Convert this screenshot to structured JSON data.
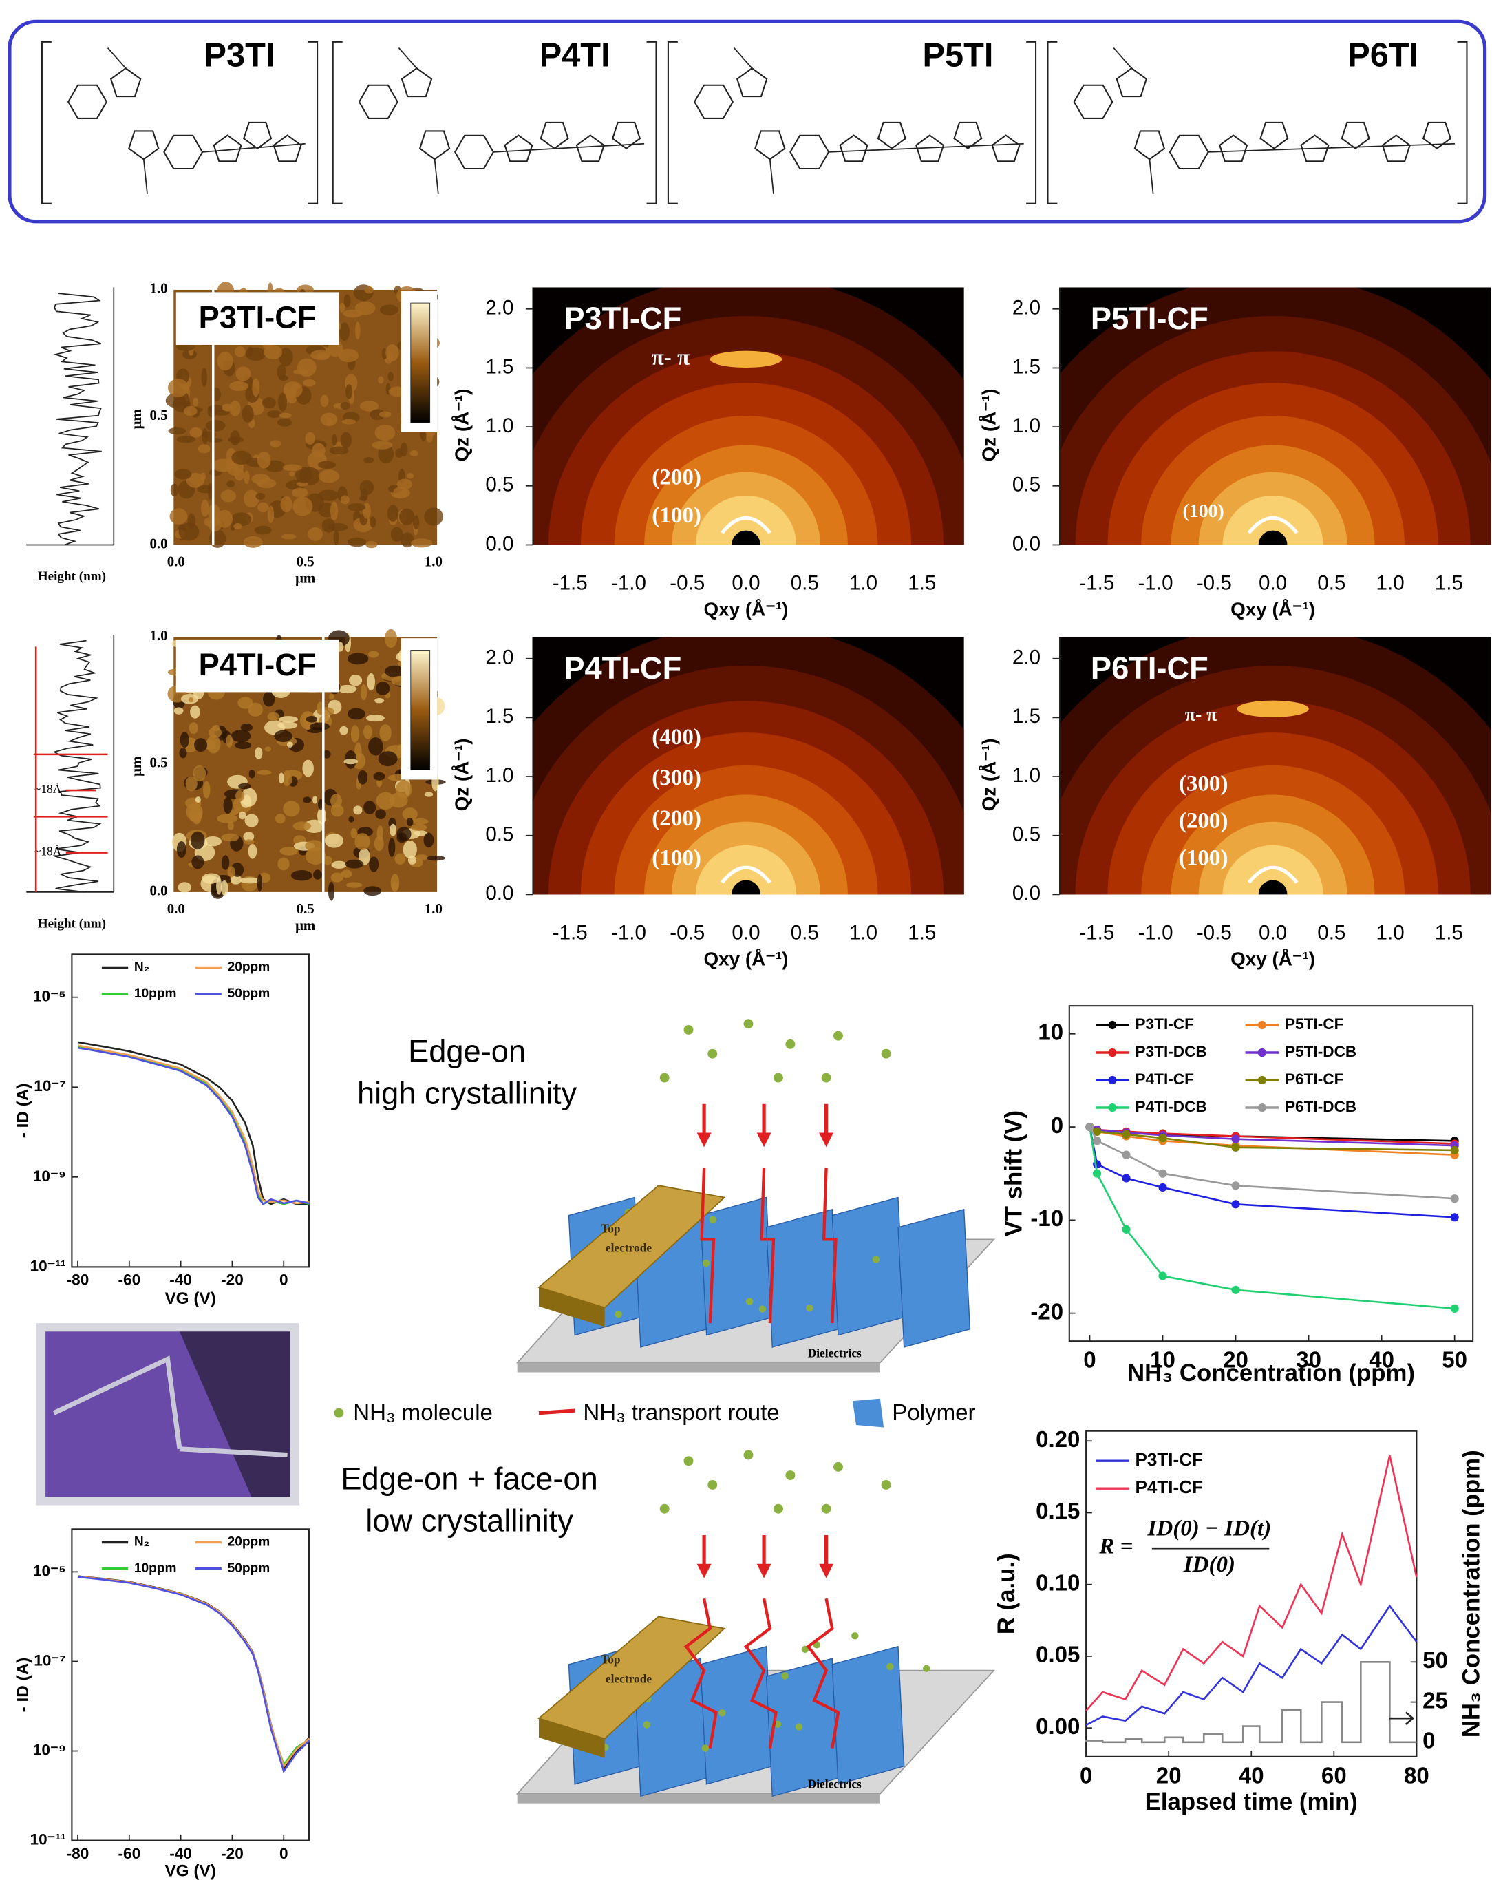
{
  "structures": {
    "labels": [
      "P3TI",
      "P4TI",
      "P5TI",
      "P6TI"
    ]
  },
  "afm": [
    {
      "label": "P3TI-CF",
      "x_ticks": [
        "0.0",
        "0.5",
        "1.0"
      ],
      "y_ticks": [
        "0.0",
        "0.5",
        "1.0"
      ],
      "axis_unit": "μm",
      "profile_label": "Height (nm)"
    },
    {
      "label": "P4TI-CF",
      "x_ticks": [
        "0.0",
        "0.5",
        "1.0"
      ],
      "y_ticks": [
        "0.0",
        "0.5",
        "1.0"
      ],
      "axis_unit": "μm",
      "profile_label": "Height (nm)",
      "annotations": [
        "~18Å",
        "~18Å"
      ]
    }
  ],
  "giwaxs": {
    "qz_ticks": [
      "0.0",
      "0.5",
      "1.0",
      "1.5",
      "2.0"
    ],
    "qxy_ticks": [
      "-1.5",
      "-1.0",
      "-0.5",
      "0.0",
      "0.5",
      "1.0",
      "1.5"
    ],
    "qz_label": "Qz (Å⁻¹)",
    "qxy_label": "Qxy (Å⁻¹)",
    "panels": [
      {
        "label": "P3TI-CF",
        "peaks": [
          "π- π",
          "(200)",
          "(100)"
        ]
      },
      {
        "label": "P5TI-CF",
        "peaks": [
          "(100)"
        ]
      },
      {
        "label": "P4TI-CF",
        "peaks": [
          "(400)",
          "(300)",
          "(200)",
          "(100)"
        ]
      },
      {
        "label": "P6TI-CF",
        "peaks": [
          "π- π",
          "(300)",
          "(200)",
          "(100)"
        ]
      }
    ]
  },
  "schematic": {
    "top_title": [
      "Edge-on",
      "high crystallinity"
    ],
    "bottom_title": [
      "Edge-on + face-on",
      "low crystallinity"
    ],
    "electrode_label": [
      "Top",
      "electrode"
    ],
    "substrate_label": "Dielectrics",
    "legend": [
      "NH₃ molecule",
      "NH₃ transport route",
      "Polymer"
    ]
  },
  "chart_data": [
    {
      "type": "line",
      "log_y": true,
      "x_label": "VG (V)",
      "y_label": "- ID (A)",
      "xlim": [
        -82.3,
        9.8
      ],
      "ylim": [
        1e-11,
        9e-05
      ],
      "xticks": [
        -80,
        -60,
        -40,
        -20,
        0
      ],
      "yticks": [
        {
          "value": 1e-11,
          "label": "10⁻¹¹"
        },
        {
          "value": 1e-09,
          "label": "10⁻⁹"
        },
        {
          "value": 1e-07,
          "label": "10⁻⁷"
        },
        {
          "value": 1e-05,
          "label": "10⁻⁵"
        }
      ],
      "x": [
        -80,
        -70,
        -60,
        -50,
        -40,
        -30,
        -25,
        -20,
        -15,
        -12,
        -10,
        -8,
        -5,
        0,
        5,
        10
      ],
      "series": [
        {
          "name": "N₂",
          "color": "#222222",
          "values": [
            1e-06,
            8e-07,
            6.3e-07,
            4.5e-07,
            3.2e-07,
            1.6e-07,
            1e-07,
            5e-08,
            1.6e-08,
            5e-09,
            1e-09,
            3.2e-10,
            2.5e-10,
            3.2e-10,
            2.5e-10,
            2.5e-10
          ]
        },
        {
          "name": "10ppm",
          "color": "#33cc33",
          "values": [
            8e-07,
            6.3e-07,
            5e-07,
            3.5e-07,
            2.5e-07,
            1.2e-07,
            6e-08,
            2.5e-08,
            6e-09,
            1.5e-09,
            4e-10,
            2.5e-10,
            3e-10,
            2.5e-10,
            3e-10,
            2.5e-10
          ]
        },
        {
          "name": "20ppm",
          "color": "#f0a050",
          "values": [
            8.5e-07,
            6.6e-07,
            5.2e-07,
            3.7e-07,
            2.6e-07,
            1.3e-07,
            6.5e-08,
            2.8e-08,
            7e-09,
            1.8e-09,
            5e-10,
            3e-10,
            2.8e-10,
            3e-10,
            2.6e-10,
            2.8e-10
          ]
        },
        {
          "name": "50ppm",
          "color": "#5050e0",
          "values": [
            7.5e-07,
            6e-07,
            4.7e-07,
            3.3e-07,
            2.3e-07,
            1.1e-07,
            5.5e-08,
            2.2e-08,
            5e-09,
            1.2e-09,
            3.5e-10,
            2.5e-10,
            3.2e-10,
            2.6e-10,
            3e-10,
            2.6e-10
          ]
        }
      ]
    },
    {
      "type": "line",
      "log_y": true,
      "x_label": "VG (V)",
      "y_label": "- ID (A)",
      "xlim": [
        -82.3,
        9.8
      ],
      "ylim": [
        1e-11,
        9e-05
      ],
      "xticks": [
        -80,
        -60,
        -40,
        -20,
        0
      ],
      "yticks": [
        {
          "value": 1e-11,
          "label": "10⁻¹¹"
        },
        {
          "value": 1e-09,
          "label": "10⁻⁹"
        },
        {
          "value": 1e-07,
          "label": "10⁻⁷"
        },
        {
          "value": 1e-05,
          "label": "10⁻⁵"
        }
      ],
      "x": [
        -80,
        -70,
        -60,
        -50,
        -40,
        -30,
        -25,
        -20,
        -15,
        -12,
        -10,
        -8,
        -5,
        0,
        5,
        10
      ],
      "series": [
        {
          "name": "N₂",
          "color": "#222222",
          "values": [
            8e-06,
            7e-06,
            6e-06,
            4.5e-06,
            3.3e-06,
            2e-06,
            1.3e-06,
            7e-07,
            3e-07,
            1.6e-07,
            7e-08,
            2.5e-08,
            4e-09,
            4e-10,
            1e-09,
            2e-09
          ]
        },
        {
          "name": "10ppm",
          "color": "#33cc33",
          "values": [
            7.8e-06,
            6.8e-06,
            5.8e-06,
            4.4e-06,
            3.2e-06,
            1.9e-06,
            1.25e-06,
            6.6e-07,
            2.8e-07,
            1.5e-07,
            6.5e-08,
            2.2e-08,
            3.5e-09,
            5e-10,
            1.2e-09,
            1.8e-09
          ]
        },
        {
          "name": "20ppm",
          "color": "#f0a050",
          "values": [
            7.9e-06,
            6.9e-06,
            5.9e-06,
            4.4e-06,
            3.25e-06,
            1.95e-06,
            1.28e-06,
            6.8e-07,
            2.9e-07,
            1.55e-07,
            6.8e-08,
            2.4e-08,
            3.8e-09,
            4.5e-10,
            1.1e-09,
            1.9e-09
          ]
        },
        {
          "name": "50ppm",
          "color": "#5050e0",
          "values": [
            7.7e-06,
            6.7e-06,
            5.7e-06,
            4.3e-06,
            3.1e-06,
            1.85e-06,
            1.2e-06,
            6.4e-07,
            2.7e-07,
            1.45e-07,
            6.2e-08,
            2e-08,
            3.2e-09,
            3.5e-10,
            9e-10,
            1.7e-09
          ]
        }
      ]
    },
    {
      "type": "line",
      "markers": true,
      "x_label": "NH₃ Concentration (ppm)",
      "y_label": "VT shift (V)",
      "xlim": [
        -2.8,
        52.5
      ],
      "ylim": [
        -23,
        13
      ],
      "xticks": [
        0,
        10,
        20,
        30,
        40,
        50
      ],
      "yticks": [
        -20,
        -10,
        0,
        10
      ],
      "x": [
        0,
        1,
        5,
        10,
        20,
        50
      ],
      "series": [
        {
          "name": "P3TI-CF",
          "color": "#000000",
          "values": [
            0,
            -0.3,
            -0.6,
            -0.8,
            -1,
            -1.5
          ]
        },
        {
          "name": "P3TI-DCB",
          "color": "#e02020",
          "values": [
            0,
            -0.3,
            -0.5,
            -0.7,
            -1,
            -1.8
          ]
        },
        {
          "name": "P4TI-CF",
          "color": "#2020e0",
          "values": [
            0,
            -4,
            -5.5,
            -6.5,
            -8.3,
            -9.7
          ]
        },
        {
          "name": "P4TI-DCB",
          "color": "#20d070",
          "values": [
            0,
            -5,
            -11,
            -16,
            -17.5,
            -19.5
          ]
        },
        {
          "name": "P5TI-CF",
          "color": "#f08020",
          "values": [
            0,
            -0.5,
            -1,
            -1.5,
            -2,
            -3
          ]
        },
        {
          "name": "P5TI-DCB",
          "color": "#7030d0",
          "values": [
            0,
            -0.3,
            -0.6,
            -0.9,
            -1.3,
            -2
          ]
        },
        {
          "name": "P6TI-CF",
          "color": "#808000",
          "values": [
            0,
            -0.5,
            -0.8,
            -1.2,
            -2.2,
            -2.5
          ]
        },
        {
          "name": "P6TI-DCB",
          "color": "#999999",
          "values": [
            0,
            -1.5,
            -3,
            -5,
            -6.3,
            -7.7
          ]
        }
      ]
    },
    {
      "type": "line",
      "x_label": "Elapsed time (min)",
      "y_label": "R (a.u.)",
      "y2_label": "NH₃ Concentration (ppm)",
      "xlim": [
        0,
        80
      ],
      "ylim": [
        -0.02,
        0.207
      ],
      "y2lim": [
        -9,
        194
      ],
      "xticks": [
        0,
        20,
        40,
        60,
        80
      ],
      "yticks": [
        {
          "value": 0,
          "label": "0.00"
        },
        {
          "value": 0.05,
          "label": "0.05"
        },
        {
          "value": 0.1,
          "label": "0.10"
        },
        {
          "value": 0.15,
          "label": "0.15"
        },
        {
          "value": 0.2,
          "label": "0.20"
        }
      ],
      "y2ticks": [
        0,
        25,
        50
      ],
      "equation": {
        "lhs": "R =",
        "numerator": "ID(0) − ID(t)",
        "denominator": "ID(0)"
      },
      "x": [
        0,
        4,
        9.5,
        13.5,
        19,
        23.5,
        28.5,
        33,
        38,
        42,
        47.5,
        52,
        57,
        62,
        66.5,
        73.5,
        80
      ],
      "series": [
        {
          "name": "P3TI-CF",
          "color": "#3333dd",
          "values": [
            0.002,
            0.008,
            0.005,
            0.015,
            0.01,
            0.025,
            0.02,
            0.035,
            0.025,
            0.045,
            0.035,
            0.055,
            0.045,
            0.065,
            0.055,
            0.085,
            0.06
          ]
        },
        {
          "name": "P4TI-CF",
          "color": "#ee3355",
          "values": [
            0.012,
            0.025,
            0.02,
            0.04,
            0.03,
            0.055,
            0.045,
            0.06,
            0.05,
            0.085,
            0.07,
            0.1,
            0.08,
            0.135,
            0.1,
            0.19,
            0.105
          ]
        },
        {
          "color": "#888888",
          "axis": "y2",
          "x": [
            0,
            0,
            4,
            4,
            9.5,
            9.5,
            13.5,
            13.5,
            19,
            19,
            23.5,
            23.5,
            28.5,
            28.5,
            33,
            33,
            38,
            38,
            42,
            42,
            47.5,
            47.5,
            52,
            52,
            57,
            57,
            62,
            62,
            66.5,
            66.5,
            73.5,
            73.5,
            80
          ],
          "values": [
            0,
            1,
            1,
            0,
            0,
            2,
            2,
            0,
            0,
            3,
            3,
            0,
            0,
            5,
            5,
            0,
            0,
            10,
            10,
            0,
            0,
            20,
            20,
            0,
            0,
            25,
            25,
            0,
            0,
            50,
            50,
            0,
            0
          ]
        }
      ]
    }
  ]
}
